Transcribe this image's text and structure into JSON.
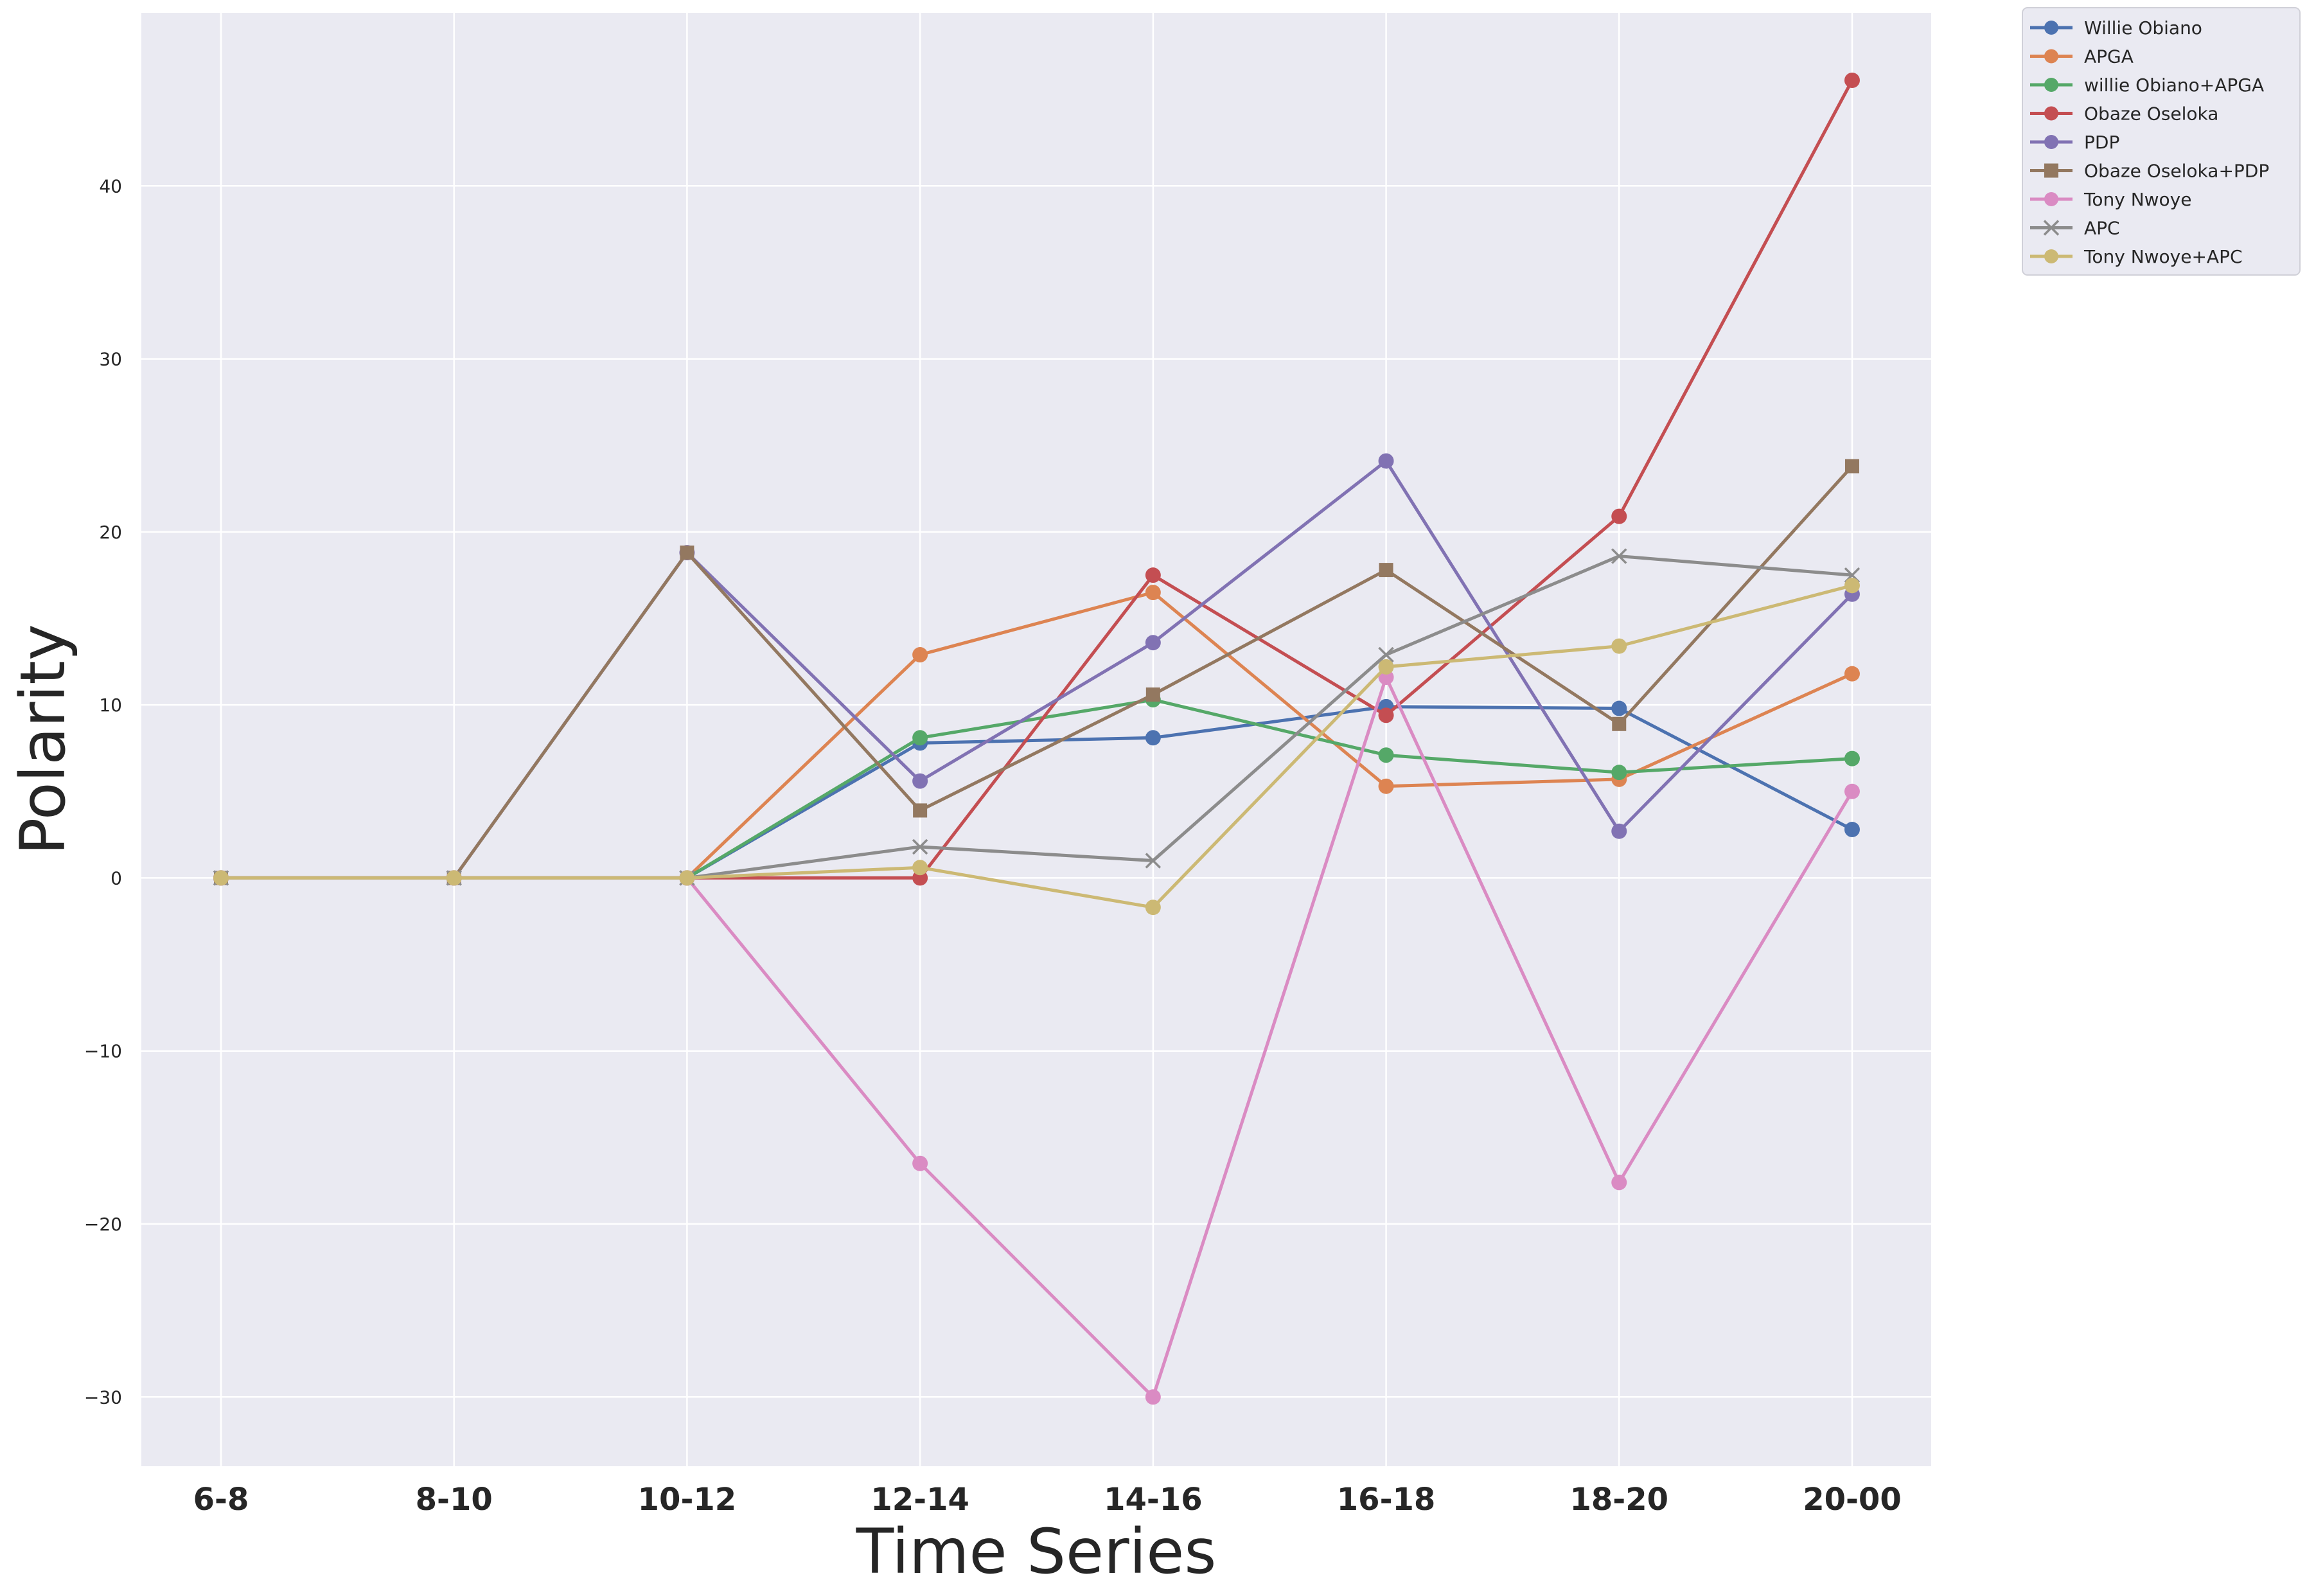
{
  "chart_data": {
    "type": "line",
    "title": "",
    "xlabel": "Time Series",
    "ylabel": "Polarity",
    "categories": [
      "6-8",
      "8-10",
      "10-12",
      "12-14",
      "14-16",
      "16-18",
      "18-20",
      "20-00"
    ],
    "ylim": [
      -34,
      50
    ],
    "yticks": [
      -30,
      -20,
      -10,
      0,
      10,
      20,
      30,
      40
    ],
    "ytick_labels": [
      "−30",
      "−20",
      "−10",
      "0",
      "10",
      "20",
      "30",
      "40"
    ],
    "grid": true,
    "legend_position": "outside-top-right",
    "background": "#eaeaf2",
    "series": [
      {
        "name": "Willie Obiano",
        "color": "#4c72b0",
        "marker": "circle",
        "values": [
          0,
          0,
          0,
          7.8,
          8.1,
          9.9,
          9.8,
          2.8
        ]
      },
      {
        "name": "APGA",
        "color": "#dd8452",
        "marker": "circle",
        "values": [
          0,
          0,
          0,
          12.9,
          16.5,
          5.3,
          5.7,
          11.8
        ]
      },
      {
        "name": "willie Obiano+APGA",
        "color": "#55a868",
        "marker": "circle",
        "values": [
          0,
          0,
          0,
          8.1,
          10.3,
          7.1,
          6.1,
          6.9
        ]
      },
      {
        "name": "Obaze Oseloka",
        "color": "#c44e52",
        "marker": "circle",
        "values": [
          0,
          0,
          0,
          0,
          17.5,
          9.4,
          20.9,
          46.1
        ]
      },
      {
        "name": "PDP",
        "color": "#8172b3",
        "marker": "circle",
        "values": [
          0,
          0,
          18.8,
          5.6,
          13.6,
          24.1,
          2.7,
          16.4
        ]
      },
      {
        "name": "Obaze Oseloka+PDP",
        "color": "#937860",
        "marker": "square",
        "values": [
          0,
          0,
          18.8,
          3.9,
          10.6,
          17.8,
          8.9,
          23.8
        ]
      },
      {
        "name": "Tony Nwoye",
        "color": "#da8bc3",
        "marker": "circle",
        "values": [
          0,
          0,
          0,
          -16.5,
          -30.0,
          11.6,
          -17.6,
          5.0
        ]
      },
      {
        "name": "APC",
        "color": "#8c8c8c",
        "marker": "x",
        "values": [
          0,
          0,
          0,
          1.8,
          1.0,
          12.9,
          18.6,
          17.5
        ]
      },
      {
        "name": "Tony Nwoye+APC",
        "color": "#ccb974",
        "marker": "circle",
        "values": [
          0,
          0,
          0,
          0.6,
          -1.7,
          12.2,
          13.4,
          16.9
        ]
      }
    ]
  }
}
